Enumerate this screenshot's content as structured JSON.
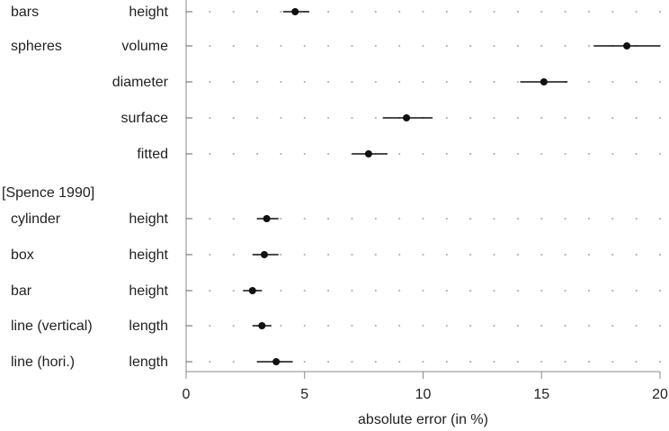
{
  "chart_data": {
    "type": "scatter",
    "xlabel": "absolute error (in %)",
    "xlim": [
      0,
      20
    ],
    "xticks": [
      0,
      5,
      10,
      15,
      20
    ],
    "grid": true,
    "rows": [
      {
        "group": "bars",
        "measure": "height",
        "value": 4.6,
        "ci": [
          4.1,
          5.2
        ]
      },
      {
        "group": "spheres",
        "measure": "volume",
        "value": 18.6,
        "ci": [
          17.2,
          20.0
        ]
      },
      {
        "group": "",
        "measure": "diameter",
        "value": 15.1,
        "ci": [
          14.1,
          16.1
        ]
      },
      {
        "group": "",
        "measure": "surface",
        "value": 9.3,
        "ci": [
          8.3,
          10.4
        ]
      },
      {
        "group": "",
        "measure": "fitted",
        "value": 7.7,
        "ci": [
          7.0,
          8.5
        ]
      },
      {
        "group": "[Spence 1990]",
        "measure": "",
        "value": null,
        "ci": null
      },
      {
        "group": "cylinder",
        "measure": "height",
        "value": 3.4,
        "ci": [
          3.0,
          3.9
        ]
      },
      {
        "group": "box",
        "measure": "height",
        "value": 3.3,
        "ci": [
          2.8,
          3.9
        ]
      },
      {
        "group": "bar",
        "measure": "height",
        "value": 2.8,
        "ci": [
          2.4,
          3.2
        ]
      },
      {
        "group": "line (vertical)",
        "measure": "length",
        "value": 3.2,
        "ci": [
          2.8,
          3.6
        ]
      },
      {
        "group": "line (hori.)",
        "measure": "length",
        "value": 3.8,
        "ci": [
          3.0,
          4.5
        ]
      }
    ]
  }
}
